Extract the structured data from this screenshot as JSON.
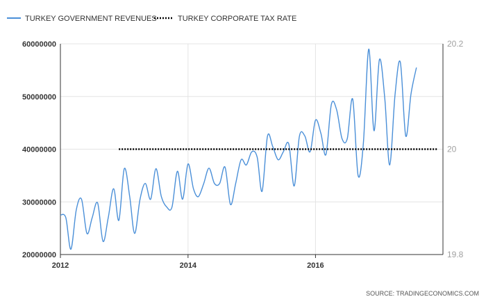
{
  "legend": {
    "revenues_label": "TURKEY GOVERNMENT REVENUES",
    "tax_label": "TURKEY CORPORATE TAX RATE"
  },
  "source": "SOURCE: TRADINGECONOMICS.COM",
  "colors": {
    "revenues": "#4a8fd8",
    "tax": "#000000",
    "grid": "#e4e4e4",
    "axis": "#333333"
  },
  "chart_data": {
    "type": "line",
    "grid": true,
    "legend_position": "top-left",
    "x_ticks": [
      "2012",
      "2014",
      "2016"
    ],
    "y_left": {
      "ylim": [
        20000000,
        60000000
      ],
      "ticks": [
        "20000000",
        "30000000",
        "40000000",
        "50000000",
        "60000000"
      ]
    },
    "y_right": {
      "ylim": [
        19.8,
        20.2
      ],
      "ticks": [
        "19.8",
        "20",
        "20.2"
      ]
    },
    "series": [
      {
        "name": "TURKEY GOVERNMENT REVENUES",
        "axis": "left",
        "style": "solid",
        "points": [
          [
            "2012-01",
            27500000
          ],
          [
            "2012-02",
            27000000
          ],
          [
            "2012-03",
            21000000
          ],
          [
            "2012-04",
            28500000
          ],
          [
            "2012-05",
            30500000
          ],
          [
            "2012-06",
            24000000
          ],
          [
            "2012-07",
            27000000
          ],
          [
            "2012-08",
            29800000
          ],
          [
            "2012-09",
            22500000
          ],
          [
            "2012-10",
            27000000
          ],
          [
            "2012-11",
            32500000
          ],
          [
            "2012-12",
            26500000
          ],
          [
            "2013-01",
            36300000
          ],
          [
            "2013-02",
            31000000
          ],
          [
            "2013-03",
            24000000
          ],
          [
            "2013-04",
            30500000
          ],
          [
            "2013-05",
            33500000
          ],
          [
            "2013-06",
            30500000
          ],
          [
            "2013-07",
            36300000
          ],
          [
            "2013-08",
            31000000
          ],
          [
            "2013-09",
            29000000
          ],
          [
            "2013-10",
            29000000
          ],
          [
            "2013-11",
            35800000
          ],
          [
            "2013-12",
            30500000
          ],
          [
            "2014-01",
            37200000
          ],
          [
            "2014-02",
            32500000
          ],
          [
            "2014-03",
            31000000
          ],
          [
            "2014-04",
            33500000
          ],
          [
            "2014-05",
            36400000
          ],
          [
            "2014-06",
            33500000
          ],
          [
            "2014-07",
            33500000
          ],
          [
            "2014-08",
            36600000
          ],
          [
            "2014-09",
            29500000
          ],
          [
            "2014-10",
            33500000
          ],
          [
            "2014-11",
            38000000
          ],
          [
            "2014-12",
            37000000
          ],
          [
            "2015-01",
            39500000
          ],
          [
            "2015-02",
            38500000
          ],
          [
            "2015-03",
            32000000
          ],
          [
            "2015-04",
            42500000
          ],
          [
            "2015-05",
            40500000
          ],
          [
            "2015-06",
            38000000
          ],
          [
            "2015-07",
            39500000
          ],
          [
            "2015-08",
            41000000
          ],
          [
            "2015-09",
            33000000
          ],
          [
            "2015-10",
            42500000
          ],
          [
            "2015-11",
            42500000
          ],
          [
            "2015-12",
            39500000
          ],
          [
            "2016-01",
            45500000
          ],
          [
            "2016-02",
            43000000
          ],
          [
            "2016-03",
            39000000
          ],
          [
            "2016-04",
            48500000
          ],
          [
            "2016-05",
            47500000
          ],
          [
            "2016-06",
            42000000
          ],
          [
            "2016-07",
            42000000
          ],
          [
            "2016-08",
            49500000
          ],
          [
            "2016-09",
            35000000
          ],
          [
            "2016-10",
            41000000
          ],
          [
            "2016-11",
            59000000
          ],
          [
            "2016-12",
            43500000
          ],
          [
            "2017-01",
            57000000
          ],
          [
            "2017-02",
            49500000
          ],
          [
            "2017-03",
            37000000
          ],
          [
            "2017-04",
            50500000
          ],
          [
            "2017-05",
            56500000
          ],
          [
            "2017-06",
            42500000
          ],
          [
            "2017-07",
            50500000
          ],
          [
            "2017-08",
            55500000
          ]
        ]
      },
      {
        "name": "TURKEY CORPORATE TAX RATE",
        "axis": "right",
        "style": "dotted",
        "points": [
          [
            "2012-12",
            20
          ],
          [
            "2017-12",
            20
          ]
        ]
      }
    ]
  }
}
